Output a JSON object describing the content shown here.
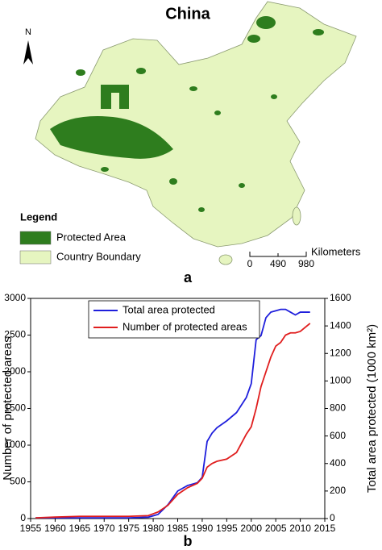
{
  "map": {
    "title": "China",
    "north": "N",
    "legend": {
      "title": "Legend",
      "items": [
        {
          "label": "Protected Area",
          "color": "#2e7d1e"
        },
        {
          "label": "Country Boundary",
          "color": "#e6f5c0"
        }
      ]
    },
    "scale": {
      "unit": "Kilometers",
      "ticks": [
        0,
        490,
        980
      ]
    },
    "panel_label": "a"
  },
  "chart_data": {
    "type": "line",
    "panel_label": "b",
    "y_label": "Number of protected areas",
    "y2_label": "Total area protected (1000 km²)",
    "x": [
      1956,
      1960,
      1965,
      1970,
      1975,
      1979,
      1981,
      1983,
      1985,
      1987,
      1989,
      1990,
      1991,
      1992,
      1993,
      1995,
      1997,
      1999,
      2000,
      2001,
      2002,
      2003,
      2004,
      2005,
      2006,
      2007,
      2008,
      2009,
      2010,
      2012
    ],
    "series": [
      {
        "name": "Total area protected",
        "color": "#1f1fdc",
        "axis": "y2",
        "values": [
          5,
          5,
          5,
          5,
          5,
          10,
          30,
          100,
          200,
          240,
          260,
          300,
          560,
          620,
          660,
          710,
          770,
          880,
          980,
          1300,
          1330,
          1460,
          1500,
          1510,
          1520,
          1520,
          1500,
          1480,
          1500,
          1500
        ]
      },
      {
        "name": "Number of protected areas",
        "color": "#e01e1e",
        "values": [
          10,
          20,
          30,
          30,
          30,
          40,
          90,
          180,
          330,
          420,
          480,
          550,
          700,
          750,
          780,
          810,
          900,
          1150,
          1250,
          1500,
          1800,
          2000,
          2200,
          2350,
          2400,
          2500,
          2530,
          2530,
          2550,
          2660
        ]
      }
    ],
    "xlim": [
      1955,
      2015
    ],
    "xticks": [
      1955,
      1960,
      1965,
      1970,
      1975,
      1980,
      1985,
      1990,
      1995,
      2000,
      2005,
      2010,
      2015
    ],
    "ylim": [
      0,
      3000
    ],
    "yticks": [
      0,
      500,
      1000,
      1500,
      2000,
      2500,
      3000
    ],
    "y2lim": [
      0,
      1600
    ],
    "y2ticks": [
      0,
      200,
      400,
      600,
      800,
      1000,
      1200,
      1400,
      1600
    ],
    "legend": "upper left"
  }
}
